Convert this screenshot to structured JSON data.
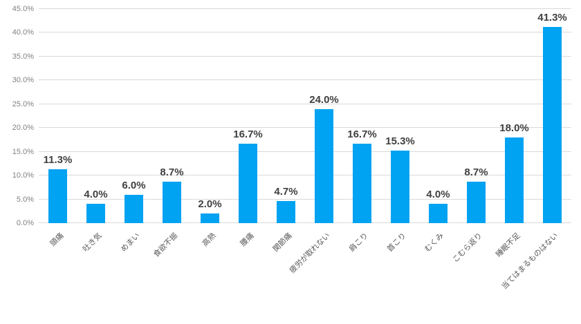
{
  "chart_data": {
    "type": "bar",
    "title": "",
    "xlabel": "",
    "ylabel": "",
    "categories": [
      "頭痛",
      "吐き気",
      "めまい",
      "食欲不振",
      "高熱",
      "腰痛",
      "関節痛",
      "疲労が取れない",
      "肩こり",
      "首こり",
      "むくみ",
      "こむら返り",
      "睡眠不足",
      "当てはまるものはない"
    ],
    "values": [
      11.3,
      4.0,
      6.0,
      8.7,
      2.0,
      16.7,
      4.7,
      24.0,
      16.7,
      15.3,
      4.0,
      8.7,
      18.0,
      41.3
    ],
    "value_labels": [
      "11.3%",
      "4.0%",
      "6.0%",
      "8.7%",
      "2.0%",
      "16.7%",
      "4.7%",
      "24.0%",
      "16.7%",
      "15.3%",
      "4.0%",
      "8.7%",
      "18.0%",
      "41.3%"
    ],
    "ylim": [
      0,
      45
    ],
    "y_tick_step": 5,
    "y_tick_labels": [
      "0.0%",
      "5.0%",
      "10.0%",
      "15.0%",
      "20.0%",
      "25.0%",
      "30.0%",
      "35.0%",
      "40.0%",
      "45.0%"
    ],
    "grid": true,
    "legend": false,
    "colors": {
      "bar": "#00a2f2",
      "value_label": "#404040",
      "y_tick_text": "#808080",
      "x_tick_text": "#595959",
      "gridline": "#d9d9d9",
      "background": "#ffffff"
    }
  }
}
